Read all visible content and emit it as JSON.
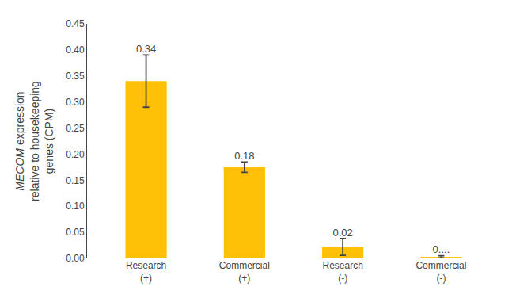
{
  "chart_data": {
    "type": "bar",
    "ylabel": "MECOM expression\nrelative to housekeeping\ngenes (CPM)",
    "categories": [
      "Research\n(+)",
      "Commercial\n(+)",
      "Research\n(-)",
      "Commercial\n(-)"
    ],
    "values": [
      0.34,
      0.175,
      0.022,
      0.003
    ],
    "errors": [
      0.05,
      0.01,
      0.016,
      0.002
    ],
    "value_labels": [
      "0.34",
      "0.18",
      "0.02",
      "0...."
    ],
    "data_labels": true,
    "color": "#FFC107",
    "ylim": [
      0,
      0.45
    ],
    "yticks": [
      {
        "value": 0,
        "label": "0.00"
      },
      0.05,
      {
        "value": 0.1,
        "label": "0.10"
      },
      0.15,
      {
        "value": 0.2,
        "label": "0.20"
      },
      0.25,
      {
        "value": 0.3,
        "label": "0.30"
      },
      0.35,
      {
        "value": 0.4,
        "label": "0.40"
      },
      0.45
    ],
    "grid": false
  }
}
